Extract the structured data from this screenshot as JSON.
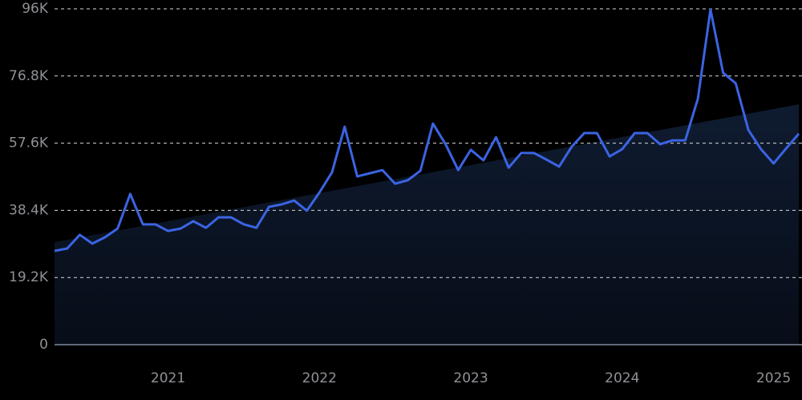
{
  "chart_data": {
    "type": "line",
    "categories": [
      null,
      null,
      null,
      null,
      null,
      null,
      null,
      null,
      null,
      "2021",
      null,
      null,
      null,
      null,
      null,
      null,
      null,
      null,
      null,
      null,
      null,
      "2022",
      null,
      null,
      null,
      null,
      null,
      null,
      null,
      null,
      null,
      null,
      null,
      "2023",
      null,
      null,
      null,
      null,
      null,
      null,
      null,
      null,
      null,
      null,
      null,
      "2024",
      null,
      null,
      null,
      null,
      null,
      null,
      null,
      null,
      null,
      null,
      null,
      "2025",
      null,
      null
    ],
    "series": [
      {
        "color": "#3b64e3",
        "values": [
          26800,
          27500,
          31400,
          28900,
          30700,
          33200,
          43100,
          34400,
          34400,
          32500,
          33200,
          35300,
          33400,
          36400,
          36400,
          34400,
          33400,
          39400,
          40100,
          41200,
          38300,
          43500,
          49300,
          62300,
          48100,
          49000,
          49900,
          46000,
          47000,
          49700,
          63200,
          57300,
          49900,
          55700,
          52700,
          59300,
          50600,
          54800,
          54800,
          52900,
          50900,
          56600,
          60500,
          60500,
          53800,
          55900,
          60500,
          60500,
          57300,
          58400,
          58400,
          70300,
          95800,
          77700,
          74700,
          61400,
          55900,
          51800,
          56100,
          60300
        ]
      }
    ],
    "trend": [
      29300,
      68700
    ],
    "ylim": [
      0,
      96000
    ],
    "yticks": [
      0,
      {
        "value": 19200,
        "label": "19.2K"
      },
      {
        "value": 38400,
        "label": "38.4K"
      },
      {
        "value": 57600,
        "label": "57.6K"
      },
      {
        "value": 76800,
        "label": "76.8K"
      },
      {
        "value": 96000,
        "label": "96K"
      }
    ],
    "grid": true
  }
}
